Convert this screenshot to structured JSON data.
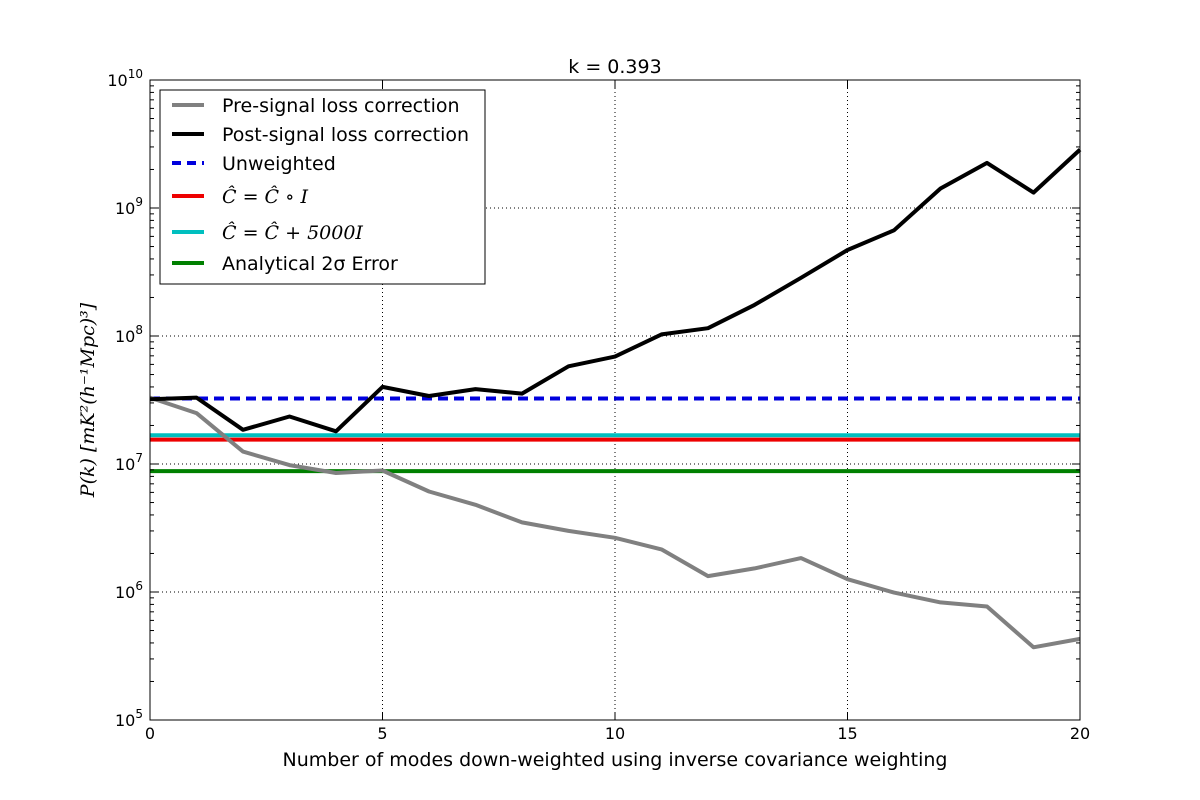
{
  "chart_data": {
    "type": "line",
    "title": "k = 0.393",
    "xlabel": "Number of modes down-weighted using inverse covariance weighting",
    "ylabel": "P(k) [mK²(h⁻¹Mpc)³]",
    "xlim": [
      0,
      20
    ],
    "ylim": [
      100000,
      10000000000
    ],
    "yscale": "log",
    "grid": true,
    "legend_position": "top-left",
    "x_ticks": [
      "0",
      "5",
      "10",
      "15",
      "20"
    ],
    "y_ticks": [
      {
        "value": 100000,
        "mantissa": "10",
        "exp": "5"
      },
      {
        "value": 1000000,
        "mantissa": "10",
        "exp": "6"
      },
      {
        "value": 10000000,
        "mantissa": "10",
        "exp": "7"
      },
      {
        "value": 100000000,
        "mantissa": "10",
        "exp": "8"
      },
      {
        "value": 1000000000,
        "mantissa": "10",
        "exp": "9"
      },
      {
        "value": 10000000000,
        "mantissa": "10",
        "exp": "10"
      }
    ],
    "series": [
      {
        "name": "Pre-signal loss correction",
        "color": "#808080",
        "style": "solid",
        "x": [
          0,
          1,
          2,
          3,
          4,
          5,
          6,
          7,
          8,
          9,
          10,
          11,
          12,
          13,
          14,
          15,
          16,
          17,
          18,
          19,
          20
        ],
        "y": [
          33000000,
          25000000,
          12500000,
          9800000,
          8500000,
          8900000,
          6100000,
          4800000,
          3500000,
          3000000,
          2650000,
          2150000,
          1330000,
          1530000,
          1840000,
          1260000,
          990000,
          830000,
          770000,
          370000,
          430000
        ]
      },
      {
        "name": "Post-signal loss correction",
        "color": "#000000",
        "style": "solid",
        "x": [
          0,
          1,
          2,
          3,
          4,
          5,
          6,
          7,
          8,
          9,
          10,
          11,
          12,
          13,
          14,
          15,
          16,
          17,
          18,
          19,
          20
        ],
        "y": [
          32000000,
          33000000,
          18500000,
          23500000,
          18000000,
          40000000,
          34000000,
          38500000,
          35500000,
          58000000,
          69000000,
          103000000,
          115000000,
          175000000,
          285000000,
          470000000,
          670000000,
          1420000000,
          2250000000,
          1320000000,
          2860000000
        ]
      },
      {
        "name": "Unweighted",
        "color": "#0000dd",
        "style": "dashed",
        "x": [
          0,
          20
        ],
        "y": [
          32500000,
          32500000
        ]
      },
      {
        "name": "Ĉ = Ĉ ∘ I",
        "color": "#ee0000",
        "style": "solid",
        "x": [
          0,
          20
        ],
        "y": [
          15500000,
          15500000
        ]
      },
      {
        "name": "Ĉ = Ĉ + 5000I",
        "color": "#00bfbf",
        "style": "solid",
        "x": [
          0,
          20
        ],
        "y": [
          16800000,
          16800000
        ]
      },
      {
        "name": "Analytical 2σ Error",
        "color": "#008000",
        "style": "solid",
        "x": [
          0,
          20
        ],
        "y": [
          8800000,
          8800000
        ]
      }
    ]
  }
}
